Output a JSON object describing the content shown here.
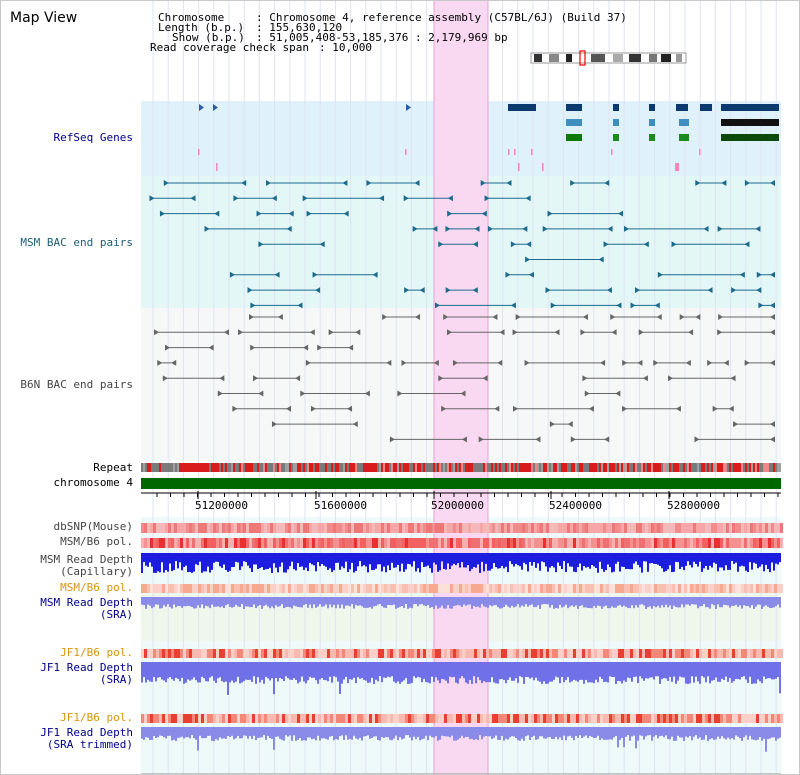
{
  "view_title": "Map View",
  "info": {
    "chromosome_key": "Chromosome",
    "chromosome_val": ": Chromosome 4, reference assembly (C57BL/6J) (Build 37)",
    "length_key": "Length (b.p.)",
    "length_val": ": 155,630,120",
    "show_key": "Show (b.p.)",
    "show_val": ": 51,005,408-53,185,376 : 2,179,969 bp",
    "coverage_key": "Read coverage check span",
    "coverage_val": ": 10,000"
  },
  "tracks": {
    "refseq": "RefSeq Genes",
    "msm_bac": "MSM BAC end pairs",
    "b6n_bac": "B6N BAC end pairs",
    "repeat": "Repeat",
    "chromosome": "chromosome 4",
    "dbsnp": "dbSNP(Mouse)",
    "msm_b6_pol": "MSM/B6 pol.",
    "msm_rd_cap_1": "MSM Read Depth",
    "msm_rd_cap_2": "(Capillary)",
    "msm_b6_pol_2": "MSM/B6 pol.",
    "msm_rd_sra_1": "MSM Read Depth",
    "msm_rd_sra_2": "(SRA)",
    "jf1_b6_pol": "JF1/B6 pol.",
    "jf1_rd_sra_1": "JF1 Read Depth",
    "jf1_rd_sra_2": "(SRA)",
    "jf1_b6_pol_2": "JF1/B6 pol.",
    "jf1_rd_trim_1": "JF1 Read Depth",
    "jf1_rd_trim_2": "(SRA trimmed)"
  },
  "axis_ticks": [
    "51200000",
    "51600000",
    "52000000",
    "52400000",
    "52800000"
  ],
  "colors": {
    "refseq_bg": "#dff1fb",
    "msm_bg": "#e3f7f7",
    "b6n_bg": "#f6f8f8",
    "highlight": "#f9d9f1",
    "chromosome": "#006600",
    "navy_label": "#00008b",
    "teal_label": "#1d5e7a",
    "orange_label": "#d9950e"
  }
}
